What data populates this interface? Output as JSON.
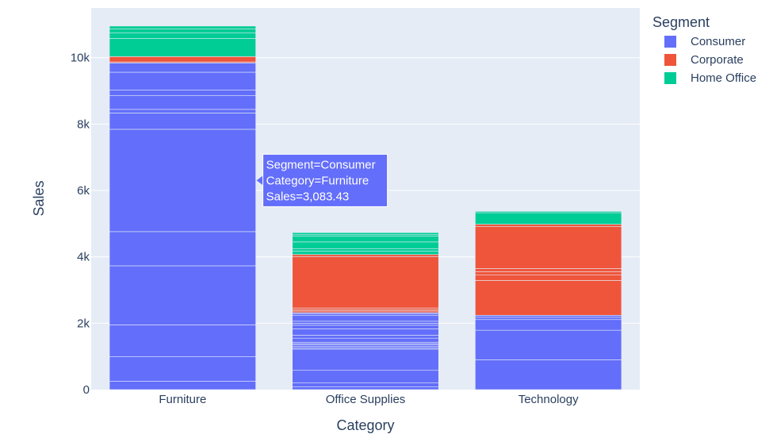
{
  "chart_data": {
    "type": "bar",
    "stacked": true,
    "xlabel": "Category",
    "ylabel": "Sales",
    "ylim": [
      0,
      11500
    ],
    "yticks": [
      0,
      2000,
      4000,
      6000,
      8000,
      10000
    ],
    "ytick_labels": [
      "0",
      "2k",
      "4k",
      "6k",
      "8k",
      "10k"
    ],
    "grid": true,
    "legend_title": "Segment",
    "legend_position": "top-right",
    "categories": [
      "Furniture",
      "Office Supplies",
      "Technology"
    ],
    "series": [
      {
        "name": "Consumer",
        "color": "#636efa",
        "segments": [
          [
            250,
            740,
            960,
            1780,
            1030,
            3083.43,
            490,
            110,
            420,
            160,
            540,
            280
          ],
          [
            80,
            120,
            380,
            640,
            40,
            40,
            50,
            40,
            40,
            120,
            90,
            190,
            110,
            60,
            60,
            170,
            50,
            40
          ],
          [
            900,
            890,
            320,
            70,
            60
          ]
        ]
      },
      {
        "name": "Corporate",
        "color": "#ef553b",
        "segments": [
          [
            30,
            160
          ],
          [
            50,
            40,
            50,
            1550,
            60
          ],
          [
            1050,
            160,
            100,
            100,
            1260,
            70
          ]
        ]
      },
      {
        "name": "Home Office",
        "color": "#00cc96",
        "segments": [
          [
            550,
            160,
            120,
            90
          ],
          [
            100,
            70,
            210,
            180,
            40,
            60
          ],
          [
            350,
            40
          ]
        ]
      }
    ],
    "hover": {
      "lines": [
        "Segment=Consumer",
        "Category=Furniture",
        "Sales=3,083.43"
      ]
    }
  }
}
